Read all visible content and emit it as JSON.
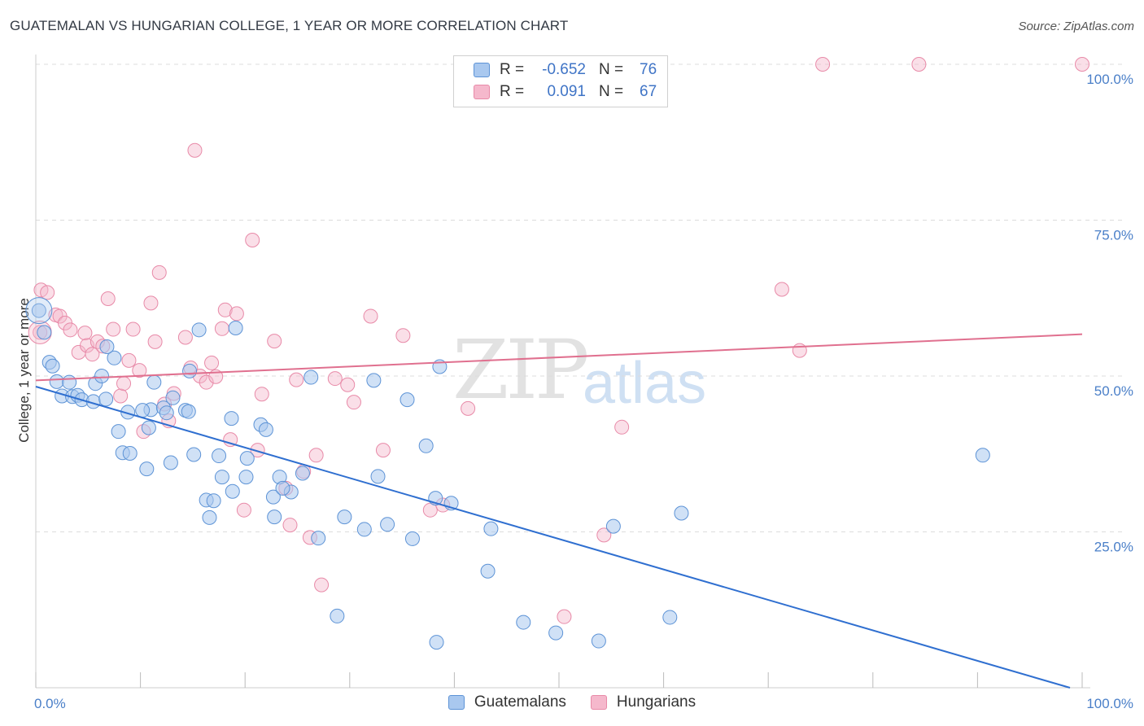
{
  "header": {
    "title": "GUATEMALAN VS HUNGARIAN COLLEGE, 1 YEAR OR MORE CORRELATION CHART",
    "source": "Source: ZipAtlas.com"
  },
  "watermark": {
    "zip": "ZIP",
    "atlas": "atlas"
  },
  "legend": {
    "rows": [
      {
        "r_label": "R =",
        "r_value": "-0.652",
        "n_label": "N =",
        "n_value": "76"
      },
      {
        "r_label": "R =",
        "r_value": "0.091",
        "n_label": "N =",
        "n_value": "67"
      }
    ]
  },
  "bottom_legend": [
    "Guatemalans",
    "Hungarians"
  ],
  "colors": {
    "blue_fill": "#a9c8ef",
    "blue_stroke": "#5d93d6",
    "blue_line": "#2f6fd0",
    "pink_fill": "#f5b8cc",
    "pink_stroke": "#e88aa8",
    "pink_line": "#e0708f",
    "tick_text": "#4a7fc8",
    "grid": "#dcdcdc"
  },
  "chart_data": {
    "type": "scatter",
    "title": "GUATEMALAN VS HUNGARIAN COLLEGE, 1 YEAR OR MORE CORRELATION CHART",
    "xlabel": "",
    "ylabel": "College, 1 year or more",
    "xlim": [
      0,
      100
    ],
    "ylim": [
      0,
      100
    ],
    "x_tick_labels": [
      "0.0%",
      "100.0%"
    ],
    "y_ticks": [
      25,
      50,
      75,
      100
    ],
    "y_tick_labels": [
      "25.0%",
      "50.0%",
      "75.0%",
      "100.0%"
    ],
    "grid": true,
    "series": [
      {
        "name": "Guatemalans",
        "r": -0.652,
        "n": 76,
        "trend": {
          "x": [
            0,
            100
          ],
          "y": [
            48.3,
            0
          ]
        },
        "points": [
          [
            0.3,
            60.5
          ],
          [
            0.8,
            57.0
          ],
          [
            1.3,
            52.2
          ],
          [
            1.6,
            51.6
          ],
          [
            2.0,
            49.1
          ],
          [
            3.2,
            49.0
          ],
          [
            2.5,
            46.8
          ],
          [
            3.5,
            46.7
          ],
          [
            4.0,
            46.9
          ],
          [
            4.4,
            46.2
          ],
          [
            5.5,
            45.9
          ],
          [
            6.7,
            46.3
          ],
          [
            5.7,
            48.8
          ],
          [
            6.3,
            50.0
          ],
          [
            7.5,
            52.9
          ],
          [
            6.8,
            54.7
          ],
          [
            8.8,
            44.2
          ],
          [
            11.0,
            44.6
          ],
          [
            10.2,
            44.5
          ],
          [
            12.2,
            44.9
          ],
          [
            12.5,
            44.1
          ],
          [
            13.1,
            46.5
          ],
          [
            14.3,
            44.5
          ],
          [
            11.3,
            49.0
          ],
          [
            10.8,
            41.7
          ],
          [
            7.9,
            41.1
          ],
          [
            8.3,
            37.7
          ],
          [
            9.0,
            37.6
          ],
          [
            10.6,
            35.1
          ],
          [
            12.9,
            36.1
          ],
          [
            14.7,
            50.8
          ],
          [
            15.6,
            57.4
          ],
          [
            19.1,
            57.7
          ],
          [
            15.1,
            37.4
          ],
          [
            17.5,
            37.2
          ],
          [
            17.8,
            33.8
          ],
          [
            18.8,
            31.5
          ],
          [
            20.1,
            33.8
          ],
          [
            20.2,
            36.8
          ],
          [
            18.7,
            43.2
          ],
          [
            21.5,
            42.2
          ],
          [
            22.0,
            41.4
          ],
          [
            16.3,
            30.1
          ],
          [
            17.0,
            30.0
          ],
          [
            16.6,
            27.3
          ],
          [
            22.7,
            30.6
          ],
          [
            23.3,
            33.8
          ],
          [
            24.4,
            31.4
          ],
          [
            25.5,
            34.4
          ],
          [
            23.6,
            32.0
          ],
          [
            22.8,
            27.4
          ],
          [
            26.3,
            49.8
          ],
          [
            29.5,
            27.4
          ],
          [
            31.4,
            25.4
          ],
          [
            27.0,
            24.0
          ],
          [
            32.3,
            49.3
          ],
          [
            32.7,
            33.9
          ],
          [
            33.6,
            26.2
          ],
          [
            35.5,
            46.2
          ],
          [
            36.0,
            23.9
          ],
          [
            37.3,
            38.8
          ],
          [
            38.2,
            30.4
          ],
          [
            39.7,
            29.6
          ],
          [
            38.6,
            51.5
          ],
          [
            43.5,
            25.5
          ],
          [
            43.2,
            18.7
          ],
          [
            46.6,
            10.5
          ],
          [
            49.7,
            8.8
          ],
          [
            53.8,
            7.5
          ],
          [
            38.3,
            7.3
          ],
          [
            28.8,
            11.5
          ],
          [
            55.2,
            25.9
          ],
          [
            60.6,
            11.3
          ],
          [
            61.7,
            28.0
          ],
          [
            90.5,
            37.3
          ],
          [
            14.6,
            44.3
          ]
        ]
      },
      {
        "name": "Hungarians",
        "r": 0.091,
        "n": 67,
        "trend": {
          "x": [
            0,
            100
          ],
          "y": [
            49.3,
            56.7
          ]
        },
        "points": [
          [
            0.5,
            63.8
          ],
          [
            0.4,
            57.0
          ],
          [
            1.1,
            63.4
          ],
          [
            1.9,
            59.8
          ],
          [
            2.3,
            59.6
          ],
          [
            2.8,
            58.5
          ],
          [
            3.3,
            57.4
          ],
          [
            4.1,
            53.8
          ],
          [
            4.7,
            56.9
          ],
          [
            4.9,
            54.9
          ],
          [
            5.4,
            53.5
          ],
          [
            5.9,
            55.5
          ],
          [
            6.4,
            54.8
          ],
          [
            6.9,
            62.4
          ],
          [
            7.4,
            57.5
          ],
          [
            8.1,
            46.8
          ],
          [
            8.4,
            48.8
          ],
          [
            8.9,
            52.5
          ],
          [
            9.3,
            57.5
          ],
          [
            9.9,
            50.9
          ],
          [
            10.3,
            41.1
          ],
          [
            11.0,
            61.7
          ],
          [
            11.4,
            55.5
          ],
          [
            11.8,
            66.6
          ],
          [
            12.3,
            45.5
          ],
          [
            12.7,
            42.8
          ],
          [
            13.2,
            47.2
          ],
          [
            14.3,
            56.2
          ],
          [
            14.8,
            51.3
          ],
          [
            15.2,
            86.2
          ],
          [
            15.7,
            50.0
          ],
          [
            16.3,
            49.0
          ],
          [
            16.8,
            52.1
          ],
          [
            17.2,
            49.9
          ],
          [
            17.8,
            57.6
          ],
          [
            18.1,
            60.6
          ],
          [
            18.6,
            39.8
          ],
          [
            19.2,
            60.0
          ],
          [
            19.9,
            28.5
          ],
          [
            20.7,
            71.8
          ],
          [
            21.2,
            38.1
          ],
          [
            21.6,
            47.1
          ],
          [
            22.8,
            55.6
          ],
          [
            23.9,
            32.0
          ],
          [
            24.3,
            26.1
          ],
          [
            24.9,
            49.4
          ],
          [
            25.6,
            34.7
          ],
          [
            26.2,
            24.1
          ],
          [
            26.8,
            37.3
          ],
          [
            27.3,
            16.5
          ],
          [
            28.6,
            49.6
          ],
          [
            29.8,
            48.6
          ],
          [
            30.4,
            45.8
          ],
          [
            32.0,
            59.6
          ],
          [
            33.2,
            38.1
          ],
          [
            35.1,
            56.5
          ],
          [
            37.7,
            28.5
          ],
          [
            38.9,
            29.3
          ],
          [
            41.3,
            44.8
          ],
          [
            50.5,
            11.4
          ],
          [
            54.3,
            24.5
          ],
          [
            56.0,
            41.8
          ],
          [
            71.3,
            63.9
          ],
          [
            73.0,
            54.1
          ],
          [
            75.2,
            100.0
          ],
          [
            84.4,
            100.0
          ],
          [
            100.0,
            100.0
          ]
        ]
      }
    ]
  }
}
